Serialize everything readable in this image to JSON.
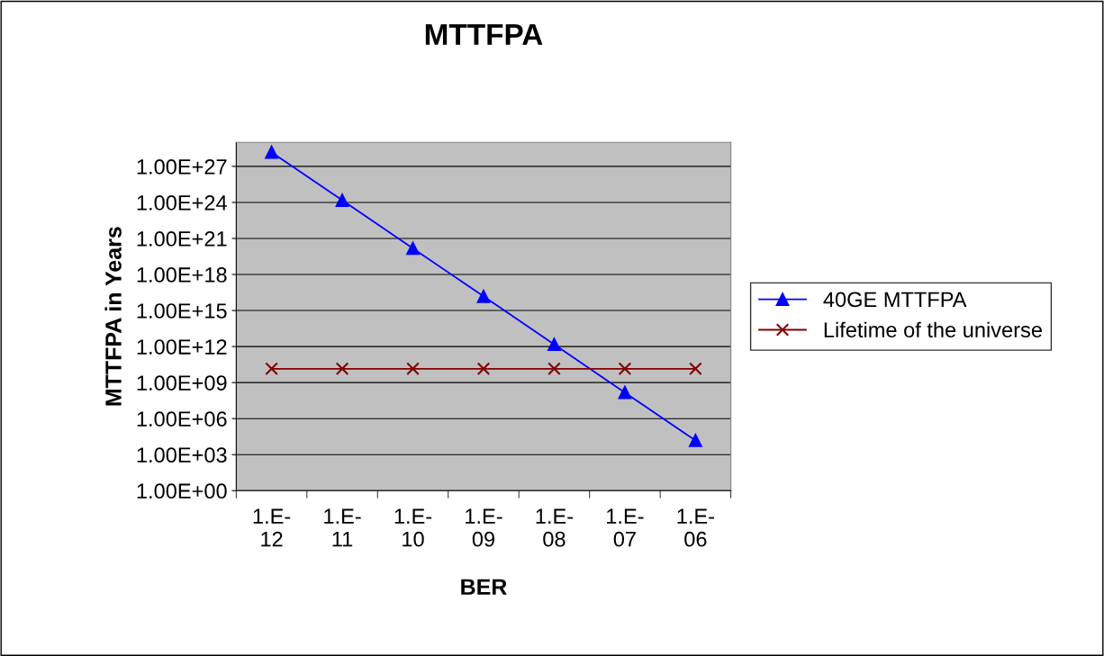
{
  "chart_data": {
    "type": "line",
    "title": "MTTFPA",
    "xlabel": "BER",
    "ylabel": "MTTFPA in Years",
    "categories": [
      "1.E-12",
      "1.E-11",
      "1.E-10",
      "1.E-09",
      "1.E-08",
      "1.E-07",
      "1.E-06"
    ],
    "series": [
      {
        "name": "40GE MTTFPA",
        "color": "#0000ff",
        "marker": "triangle",
        "values": [
          1.5e+28,
          1.5e+24,
          1.5e+20,
          1.5e+16,
          1500000000000.0,
          150000000.0,
          15000.0
        ]
      },
      {
        "name": "Lifetime of the universe",
        "color": "#800000",
        "marker": "cross",
        "values": [
          14000000000.0,
          14000000000.0,
          14000000000.0,
          14000000000.0,
          14000000000.0,
          14000000000.0,
          14000000000.0
        ]
      }
    ],
    "log": "y",
    "ylim": [
      1,
      1e+29
    ],
    "yticks": [
      {
        "value": 1,
        "label": "1.00E+00"
      },
      {
        "value": 1000.0,
        "label": "1.00E+03"
      },
      {
        "value": 1000000.0,
        "label": "1.00E+06"
      },
      {
        "value": 1000000000.0,
        "label": "1.00E+09"
      },
      {
        "value": 1000000000000.0,
        "label": "1.00E+12"
      },
      {
        "value": 1000000000000000.0,
        "label": "1.00E+15"
      },
      {
        "value": 1e+18,
        "label": "1.00E+18"
      },
      {
        "value": 1e+21,
        "label": "1.00E+21"
      },
      {
        "value": 1e+24,
        "label": "1.00E+24"
      },
      {
        "value": 1e+27,
        "label": "1.00E+27"
      }
    ],
    "grid": "y",
    "legend": "right",
    "line_style": "solid"
  }
}
